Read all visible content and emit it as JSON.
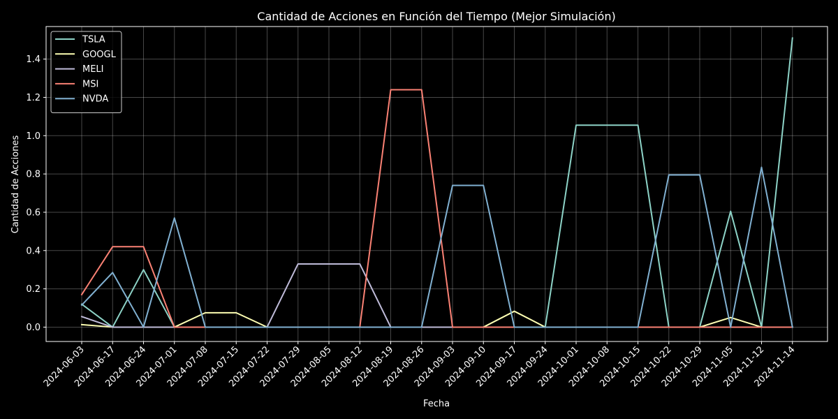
{
  "chart_data": {
    "type": "line",
    "title": "Cantidad de Acciones en Función del Tiempo (Mejor Simulación)",
    "xlabel": "Fecha",
    "ylabel": "Cantidad de Acciones",
    "categories": [
      "2024-06-03",
      "2024-06-17",
      "2024-06-24",
      "2024-07-01",
      "2024-07-08",
      "2024-07-15",
      "2024-07-22",
      "2024-07-29",
      "2024-08-05",
      "2024-08-12",
      "2024-08-19",
      "2024-08-26",
      "2024-09-03",
      "2024-09-10",
      "2024-09-17",
      "2024-09-24",
      "2024-10-01",
      "2024-10-08",
      "2024-10-15",
      "2024-10-22",
      "2024-10-29",
      "2024-11-05",
      "2024-11-12",
      "2024-11-14"
    ],
    "ylim": [
      -0.075,
      1.57
    ],
    "yticks": [
      0.0,
      0.2,
      0.4,
      0.6,
      0.8,
      1.0,
      1.2,
      1.4
    ],
    "ytick_labels": [
      "0.0",
      "0.2",
      "0.4",
      "0.6",
      "0.8",
      "1.0",
      "1.2",
      "1.4"
    ],
    "grid": true,
    "legend_position": "top-left",
    "background": "#000000",
    "series": [
      {
        "name": "TSLA",
        "color": "#8dd3c7",
        "values": [
          0.12,
          0,
          0.3,
          0,
          0,
          0,
          0,
          0,
          0,
          0,
          0,
          0,
          0,
          0,
          0,
          0,
          1.055,
          1.055,
          1.055,
          0,
          0,
          0.605,
          0,
          1.51
        ]
      },
      {
        "name": "GOOGL",
        "color": "#feffb3",
        "values": [
          0.013,
          0,
          0,
          0,
          0.075,
          0.075,
          0,
          0,
          0,
          0,
          0,
          0,
          0,
          0,
          0.083,
          0,
          0,
          0,
          0,
          0,
          0,
          0.05,
          0,
          0
        ]
      },
      {
        "name": "MELI",
        "color": "#bfbbd9",
        "values": [
          0.055,
          0,
          0,
          0,
          0,
          0,
          0,
          0.33,
          0.33,
          0.33,
          0,
          0,
          0,
          0,
          0,
          0,
          0,
          0,
          0,
          0,
          0,
          0,
          0,
          0
        ]
      },
      {
        "name": "MSI",
        "color": "#fa8174",
        "values": [
          0.17,
          0.42,
          0.42,
          0,
          0,
          0,
          0,
          0,
          0,
          0,
          1.24,
          1.24,
          0,
          0,
          0,
          0,
          0,
          0,
          0,
          0,
          0,
          0,
          0,
          0
        ]
      },
      {
        "name": "NVDA",
        "color": "#81b1d2",
        "values": [
          0.115,
          0.285,
          0,
          0.57,
          0,
          0,
          0,
          0,
          0,
          0,
          0,
          0,
          0.74,
          0.74,
          0,
          0,
          0,
          0,
          0,
          0.795,
          0.795,
          0,
          0.835,
          0
        ]
      }
    ]
  }
}
